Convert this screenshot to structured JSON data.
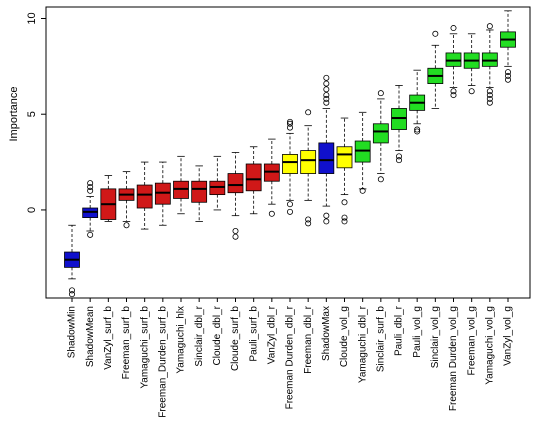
{
  "chart_data": {
    "type": "box",
    "title": "",
    "xlabel": "",
    "ylabel": "Importance",
    "ylim": [
      -4.6,
      10.6
    ],
    "yticks": [
      0,
      5,
      10
    ],
    "grid": false,
    "legend": "none",
    "colors": {
      "blue": "#1010cc",
      "red": "#d01818",
      "yellow": "#ffff00",
      "green": "#22dd22"
    },
    "boxes": [
      {
        "label": "ShadowMin",
        "color": "blue",
        "whisker_low": -3.6,
        "q1": -3.0,
        "median": -2.6,
        "q3": -2.2,
        "whisker_high": -0.8,
        "outliers": [
          -4.2,
          -4.4
        ]
      },
      {
        "label": "ShadowMean",
        "color": "blue",
        "whisker_low": -1.1,
        "q1": -0.4,
        "median": -0.1,
        "q3": 0.1,
        "whisker_high": 0.7,
        "outliers": [
          1.0,
          1.2,
          1.4,
          -1.3
        ]
      },
      {
        "label": "VanZyl_surf_b",
        "color": "red",
        "whisker_low": -0.6,
        "q1": -0.5,
        "median": 0.3,
        "q3": 1.1,
        "whisker_high": 1.8,
        "outliers": []
      },
      {
        "label": "Freeman_surf_b",
        "color": "red",
        "whisker_low": -0.6,
        "q1": 0.5,
        "median": 0.8,
        "q3": 1.1,
        "whisker_high": 2.0,
        "outliers": [
          -0.8
        ]
      },
      {
        "label": "Yamaguchi_surf_b",
        "color": "red",
        "whisker_low": -1.0,
        "q1": 0.1,
        "median": 0.8,
        "q3": 1.3,
        "whisker_high": 2.5,
        "outliers": []
      },
      {
        "label": "Freeman_Durden_surf_b",
        "color": "red",
        "whisker_low": -0.8,
        "q1": 0.3,
        "median": 0.9,
        "q3": 1.4,
        "whisker_high": 2.5,
        "outliers": []
      },
      {
        "label": "Yamaguchi_hlx",
        "color": "red",
        "whisker_low": -0.2,
        "q1": 0.6,
        "median": 1.1,
        "q3": 1.5,
        "whisker_high": 2.8,
        "outliers": []
      },
      {
        "label": "Sinclair_dbl_r",
        "color": "red",
        "whisker_low": -0.6,
        "q1": 0.4,
        "median": 1.1,
        "q3": 1.5,
        "whisker_high": 2.3,
        "outliers": []
      },
      {
        "label": "Cloude_dbl_r",
        "color": "red",
        "whisker_low": 0.0,
        "q1": 0.8,
        "median": 1.2,
        "q3": 1.5,
        "whisker_high": 2.8,
        "outliers": []
      },
      {
        "label": "Cloude_surf_b",
        "color": "red",
        "whisker_low": -0.3,
        "q1": 0.9,
        "median": 1.3,
        "q3": 1.9,
        "whisker_high": 3.0,
        "outliers": [
          -1.1,
          -1.4
        ]
      },
      {
        "label": "Pauli_surf_b",
        "color": "red",
        "whisker_low": -0.2,
        "q1": 1.0,
        "median": 1.6,
        "q3": 2.4,
        "whisker_high": 3.3,
        "outliers": []
      },
      {
        "label": "VanZyl_dbl_r",
        "color": "red",
        "whisker_low": 0.3,
        "q1": 1.5,
        "median": 2.0,
        "q3": 2.4,
        "whisker_high": 3.7,
        "outliers": [
          -0.2
        ]
      },
      {
        "label": "Freeman Durden_dbl_r",
        "color": "yellow",
        "whisker_low": 0.5,
        "q1": 1.9,
        "median": 2.5,
        "q3": 2.9,
        "whisker_high": 4.0,
        "outliers": [
          4.3,
          4.5,
          4.6,
          0.3,
          -0.1
        ]
      },
      {
        "label": "Freeman_dbl_r",
        "color": "yellow",
        "whisker_low": 0.5,
        "q1": 1.9,
        "median": 2.6,
        "q3": 3.1,
        "whisker_high": 4.4,
        "outliers": [
          5.1,
          -0.5,
          -0.7
        ]
      },
      {
        "label": "ShadowMax",
        "color": "blue",
        "whisker_low": 0.2,
        "q1": 1.9,
        "median": 2.6,
        "q3": 3.5,
        "whisker_high": 5.3,
        "outliers": [
          5.6,
          5.8,
          6.0,
          6.3,
          6.6,
          6.9,
          -0.3,
          -0.6
        ]
      },
      {
        "label": "Cloude_vol_g",
        "color": "yellow",
        "whisker_low": 0.8,
        "q1": 2.2,
        "median": 2.9,
        "q3": 3.3,
        "whisker_high": 4.8,
        "outliers": [
          0.4,
          -0.4,
          -0.6
        ]
      },
      {
        "label": "Yamaguchi_dbl_r",
        "color": "green",
        "whisker_low": 1.1,
        "q1": 2.5,
        "median": 3.1,
        "q3": 3.6,
        "whisker_high": 5.1,
        "outliers": [
          1.0
        ]
      },
      {
        "label": "Sinclair_surf_b",
        "color": "green",
        "whisker_low": 1.9,
        "q1": 3.5,
        "median": 4.1,
        "q3": 4.5,
        "whisker_high": 5.8,
        "outliers": [
          6.1,
          1.6
        ]
      },
      {
        "label": "Pauli_dbl_r",
        "color": "green",
        "whisker_low": 3.1,
        "q1": 4.2,
        "median": 4.8,
        "q3": 5.3,
        "whisker_high": 6.5,
        "outliers": [
          2.8,
          2.6
        ]
      },
      {
        "label": "Pauli_vol_g",
        "color": "green",
        "whisker_low": 4.5,
        "q1": 5.2,
        "median": 5.6,
        "q3": 6.0,
        "whisker_high": 7.3,
        "outliers": [
          4.2,
          4.1
        ]
      },
      {
        "label": "Sinclair_vol_g",
        "color": "green",
        "whisker_low": 5.3,
        "q1": 6.6,
        "median": 7.0,
        "q3": 7.4,
        "whisker_high": 8.6,
        "outliers": [
          9.2
        ]
      },
      {
        "label": "Freeman Durden_vol_g",
        "color": "green",
        "whisker_low": 6.4,
        "q1": 7.5,
        "median": 7.8,
        "q3": 8.2,
        "whisker_high": 9.2,
        "outliers": [
          9.5,
          6.2,
          6.0
        ]
      },
      {
        "label": "Freeman_vol_g",
        "color": "green",
        "whisker_low": 6.5,
        "q1": 7.4,
        "median": 7.8,
        "q3": 8.2,
        "whisker_high": 9.2,
        "outliers": [
          6.2
        ]
      },
      {
        "label": "Yamaguchi_vol_g",
        "color": "green",
        "whisker_low": 6.4,
        "q1": 7.5,
        "median": 7.8,
        "q3": 8.2,
        "whisker_high": 9.4,
        "outliers": [
          9.6,
          6.2,
          6.0,
          5.8,
          5.6
        ]
      },
      {
        "label": "VanZyl_vol_g",
        "color": "green",
        "whisker_low": 7.5,
        "q1": 8.5,
        "median": 8.9,
        "q3": 9.3,
        "whisker_high": 10.4,
        "outliers": [
          7.2,
          7.0,
          6.8
        ]
      }
    ]
  }
}
